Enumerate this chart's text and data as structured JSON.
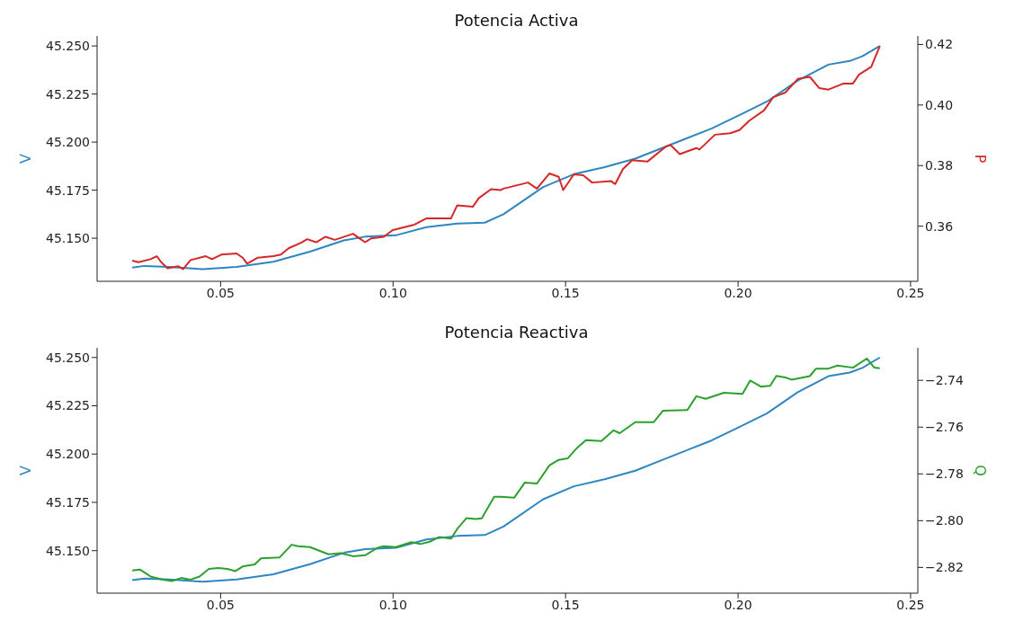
{
  "chart_data": [
    {
      "type": "line",
      "title": "Potencia Activa",
      "ylabel": "V",
      "y2label": "P",
      "grid": false,
      "legend": false,
      "xlim": [
        0.0142,
        0.2521
      ],
      "xticks": [
        {
          "value": 0.05,
          "label": "0.05"
        },
        {
          "value": 0.1,
          "label": "0.10"
        },
        {
          "value": 0.15,
          "label": "0.15"
        },
        {
          "value": 0.2,
          "label": "0.20"
        },
        {
          "value": 0.25,
          "label": "0.25"
        }
      ],
      "ylim": [
        45.1276,
        45.2552
      ],
      "yticks": [
        {
          "value": 45.15,
          "label": "45.150"
        },
        {
          "value": 45.175,
          "label": "45.175"
        },
        {
          "value": 45.2,
          "label": "45.200"
        },
        {
          "value": 45.225,
          "label": "45.225"
        },
        {
          "value": 45.25,
          "label": "45.250"
        }
      ],
      "y2lim": [
        0.3418,
        0.4228
      ],
      "y2ticks": [
        {
          "value": 0.36,
          "label": "0.36"
        },
        {
          "value": 0.38,
          "label": "0.38"
        },
        {
          "value": 0.4,
          "label": "0.40"
        },
        {
          "value": 0.42,
          "label": "0.42"
        }
      ],
      "series": [
        {
          "color": "#2e86c1",
          "x": [
            0.0244,
            0.0279,
            0.0351,
            0.0448,
            0.0546,
            0.0653,
            0.0759,
            0.0857,
            0.0919,
            0.1008,
            0.1097,
            0.1186,
            0.1266,
            0.132,
            0.1435,
            0.1524,
            0.1613,
            0.1702,
            0.1791,
            0.1924,
            0.2013,
            0.2084,
            0.2173,
            0.2262,
            0.2324,
            0.236,
            0.2411
          ],
          "values": [
            45.1347,
            45.1356,
            45.1351,
            45.1339,
            45.1351,
            45.1378,
            45.143,
            45.1489,
            45.1508,
            45.1515,
            45.1558,
            45.1576,
            45.1581,
            45.1625,
            45.1766,
            45.1833,
            45.187,
            45.1914,
            45.1977,
            45.2071,
            45.2148,
            45.2211,
            45.232,
            45.2403,
            45.2422,
            45.2446,
            45.25
          ]
        },
        {
          "color": "#d62728",
          "axis": "y2",
          "x": [
            0.0244,
            0.0262,
            0.0297,
            0.0315,
            0.0328,
            0.0346,
            0.0377,
            0.0391,
            0.0413,
            0.0457,
            0.0475,
            0.0502,
            0.0546,
            0.0564,
            0.0577,
            0.0608,
            0.0653,
            0.0675,
            0.0697,
            0.0733,
            0.0751,
            0.0777,
            0.0804,
            0.0831,
            0.0884,
            0.0902,
            0.0919,
            0.0937,
            0.0973,
            0.0999,
            0.1062,
            0.1097,
            0.1168,
            0.1186,
            0.1231,
            0.1248,
            0.1284,
            0.1311,
            0.132,
            0.1391,
            0.1417,
            0.1453,
            0.148,
            0.1493,
            0.1524,
            0.1551,
            0.1577,
            0.1631,
            0.1644,
            0.1666,
            0.1693,
            0.1737,
            0.1791,
            0.1804,
            0.1831,
            0.1879,
            0.1888,
            0.1933,
            0.1977,
            0.2004,
            0.2031,
            0.2075,
            0.2102,
            0.2137,
            0.2173,
            0.2208,
            0.2235,
            0.2262,
            0.2306,
            0.2333,
            0.2351,
            0.2386,
            0.2411
          ],
          "values": [
            0.3486,
            0.3481,
            0.3491,
            0.3501,
            0.3481,
            0.3461,
            0.3468,
            0.3458,
            0.3488,
            0.3501,
            0.3491,
            0.3506,
            0.351,
            0.3496,
            0.3476,
            0.3496,
            0.3501,
            0.3506,
            0.3527,
            0.3545,
            0.3557,
            0.3547,
            0.3565,
            0.3555,
            0.3575,
            0.356,
            0.3547,
            0.356,
            0.3565,
            0.3587,
            0.3605,
            0.3626,
            0.3626,
            0.3669,
            0.3664,
            0.3692,
            0.3722,
            0.3719,
            0.3724,
            0.3744,
            0.3724,
            0.3774,
            0.3763,
            0.3719,
            0.3771,
            0.3768,
            0.3744,
            0.3749,
            0.3739,
            0.3788,
            0.3818,
            0.3813,
            0.3863,
            0.3868,
            0.3838,
            0.3858,
            0.3853,
            0.3902,
            0.3907,
            0.3917,
            0.3947,
            0.3982,
            0.4026,
            0.4041,
            0.4086,
            0.4093,
            0.4056,
            0.4051,
            0.4071,
            0.4071,
            0.4101,
            0.4126,
            0.4195
          ]
        }
      ]
    },
    {
      "type": "line",
      "title": "Potencia Reactiva",
      "ylabel": "V",
      "y2label": "Q",
      "grid": false,
      "legend": false,
      "xlim": [
        0.0142,
        0.2521
      ],
      "xticks": [
        {
          "value": 0.05,
          "label": "0.05"
        },
        {
          "value": 0.1,
          "label": "0.10"
        },
        {
          "value": 0.15,
          "label": "0.15"
        },
        {
          "value": 0.2,
          "label": "0.20"
        },
        {
          "value": 0.25,
          "label": "0.25"
        }
      ],
      "ylim": [
        45.128,
        45.255
      ],
      "yticks": [
        {
          "value": 45.15,
          "label": "45.150"
        },
        {
          "value": 45.175,
          "label": "45.175"
        },
        {
          "value": 45.2,
          "label": "45.200"
        },
        {
          "value": 45.225,
          "label": "45.225"
        },
        {
          "value": 45.25,
          "label": "45.250"
        }
      ],
      "y2lim": [
        -2.831,
        -2.7261
      ],
      "y2ticks": [
        {
          "value": -2.82,
          "label": "−2.82"
        },
        {
          "value": -2.8,
          "label": "−2.80"
        },
        {
          "value": -2.78,
          "label": "−2.78"
        },
        {
          "value": -2.76,
          "label": "−2.76"
        },
        {
          "value": -2.74,
          "label": "−2.74"
        }
      ],
      "series": [
        {
          "color": "#2e86c1",
          "x": [
            0.0244,
            0.0279,
            0.0351,
            0.0448,
            0.0546,
            0.0653,
            0.0759,
            0.0857,
            0.0919,
            0.1008,
            0.1097,
            0.1186,
            0.1266,
            0.132,
            0.1435,
            0.1524,
            0.1613,
            0.1702,
            0.1791,
            0.1924,
            0.2013,
            0.2084,
            0.2173,
            0.2262,
            0.2324,
            0.236,
            0.2411
          ],
          "values": [
            45.1347,
            45.1356,
            45.1351,
            45.1339,
            45.1351,
            45.1378,
            45.143,
            45.1489,
            45.1508,
            45.1515,
            45.1558,
            45.1576,
            45.1581,
            45.1625,
            45.1766,
            45.1833,
            45.187,
            45.1914,
            45.1977,
            45.2071,
            45.2148,
            45.2211,
            45.232,
            45.2403,
            45.2422,
            45.2446,
            45.25
          ]
        },
        {
          "color": "#2ca02c",
          "axis": "y2",
          "x": [
            0.0244,
            0.0266,
            0.0284,
            0.0297,
            0.0333,
            0.0359,
            0.0386,
            0.0413,
            0.0439,
            0.0466,
            0.0493,
            0.0519,
            0.0542,
            0.0564,
            0.0599,
            0.0617,
            0.0671,
            0.0706,
            0.0724,
            0.0759,
            0.0813,
            0.0848,
            0.0884,
            0.0919,
            0.0955,
            0.0973,
            0.1008,
            0.1053,
            0.1079,
            0.1106,
            0.1133,
            0.1168,
            0.1186,
            0.1213,
            0.1239,
            0.1257,
            0.1293,
            0.1311,
            0.1351,
            0.1382,
            0.1417,
            0.1453,
            0.148,
            0.1506,
            0.1533,
            0.1559,
            0.1604,
            0.1639,
            0.1657,
            0.1702,
            0.1755,
            0.1782,
            0.1853,
            0.1879,
            0.1906,
            0.1959,
            0.2013,
            0.2035,
            0.2066,
            0.2093,
            0.2111,
            0.2137,
            0.2155,
            0.2208,
            0.2226,
            0.2262,
            0.2288,
            0.2333,
            0.2373,
            0.2395,
            0.2411
          ],
          "values": [
            -2.8213,
            -2.8209,
            -2.8226,
            -2.8239,
            -2.8252,
            -2.8258,
            -2.8245,
            -2.8252,
            -2.8239,
            -2.8206,
            -2.8202,
            -2.8206,
            -2.8216,
            -2.8196,
            -2.8187,
            -2.8161,
            -2.8157,
            -2.8103,
            -2.8109,
            -2.8113,
            -2.8144,
            -2.8139,
            -2.8152,
            -2.8148,
            -2.8116,
            -2.8109,
            -2.8113,
            -2.8092,
            -2.81,
            -2.809,
            -2.807,
            -2.8077,
            -2.8035,
            -2.7989,
            -2.7993,
            -2.799,
            -2.7898,
            -2.7898,
            -2.7902,
            -2.7837,
            -2.7841,
            -2.7764,
            -2.774,
            -2.7734,
            -2.7689,
            -2.7656,
            -2.766,
            -2.7614,
            -2.7626,
            -2.7579,
            -2.7579,
            -2.753,
            -2.7527,
            -2.7468,
            -2.7479,
            -2.7453,
            -2.7458,
            -2.7401,
            -2.7427,
            -2.7423,
            -2.7381,
            -2.7388,
            -2.7397,
            -2.7382,
            -2.735,
            -2.735,
            -2.7337,
            -2.7346,
            -2.7307,
            -2.7346,
            -2.7348
          ]
        }
      ]
    }
  ]
}
